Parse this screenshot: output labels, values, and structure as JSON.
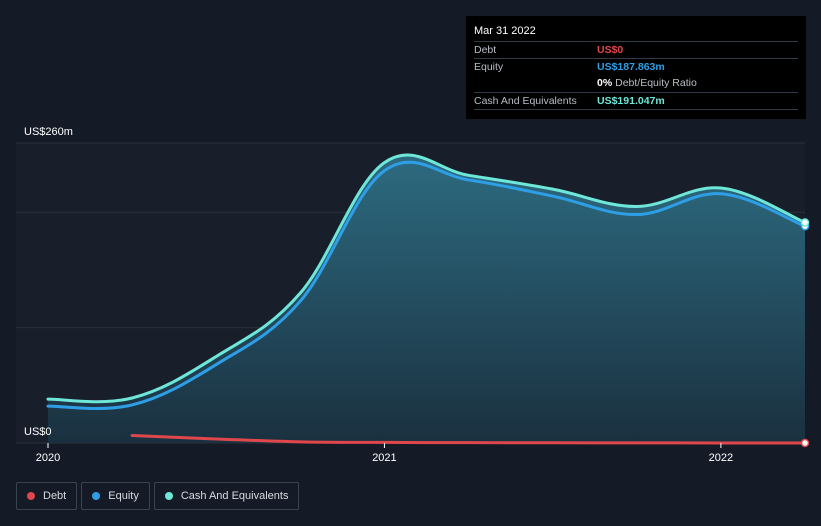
{
  "chart_data": {
    "type": "area",
    "y_axis": {
      "min": 0,
      "max": 260,
      "top_label": "US$260m",
      "bottom_label": "US$0",
      "unit": "US$m"
    },
    "x_axis": {
      "min": 2020.0,
      "max": 2022.25,
      "tick_values": [
        2020,
        2021,
        2022
      ],
      "tick_labels": [
        "2020",
        "2021",
        "2022"
      ]
    },
    "series": [
      {
        "name": "Debt",
        "color": "#e0474c",
        "x": [
          2020.25,
          2020.5,
          2020.75,
          2021.0,
          2021.25,
          2021.5,
          2021.75,
          2022.0,
          2022.25
        ],
        "values": [
          6.5,
          3.5,
          1.0,
          0.5,
          0.3,
          0.2,
          0.1,
          0.05,
          0
        ]
      },
      {
        "name": "Equity",
        "color": "#2e9fe6",
        "x": [
          2020.0,
          2020.25,
          2020.5,
          2020.75,
          2021.0,
          2021.25,
          2021.5,
          2021.75,
          2022.0,
          2022.25
        ],
        "values": [
          32,
          33,
          68,
          123,
          236,
          228,
          214,
          198,
          216,
          187.863
        ]
      },
      {
        "name": "Cash And Equivalents",
        "color": "#6ee7d8",
        "x": [
          2020.0,
          2020.25,
          2020.5,
          2020.75,
          2021.0,
          2021.25,
          2021.5,
          2021.75,
          2022.0,
          2022.25
        ],
        "values": [
          38,
          39,
          75,
          130,
          243,
          232,
          220,
          205,
          221,
          191.047
        ]
      }
    ]
  },
  "tooltip": {
    "date": "Mar 31 2022",
    "debt_label": "Debt",
    "debt_value": "US$0",
    "equity_label": "Equity",
    "equity_value": "US$187.863m",
    "ratio_value": "0%",
    "ratio_label": "Debt/Equity Ratio",
    "cash_label": "Cash And Equivalents",
    "cash_value": "US$191.047m"
  },
  "legend": {
    "items": [
      {
        "label": "Debt",
        "color": "#e0474c"
      },
      {
        "label": "Equity",
        "color": "#2e9fe6"
      },
      {
        "label": "Cash And Equivalents",
        "color": "#6ee7d8"
      }
    ]
  },
  "colors": {
    "background": "#151b26",
    "grid": "#2a313c",
    "area_fill_top": "#2e6f85",
    "area_fill_bottom": "#1a3140",
    "debt_value_color": "#e0474c",
    "equity_value_color": "#2e9fe6",
    "cash_value_color": "#6ee7d8"
  }
}
